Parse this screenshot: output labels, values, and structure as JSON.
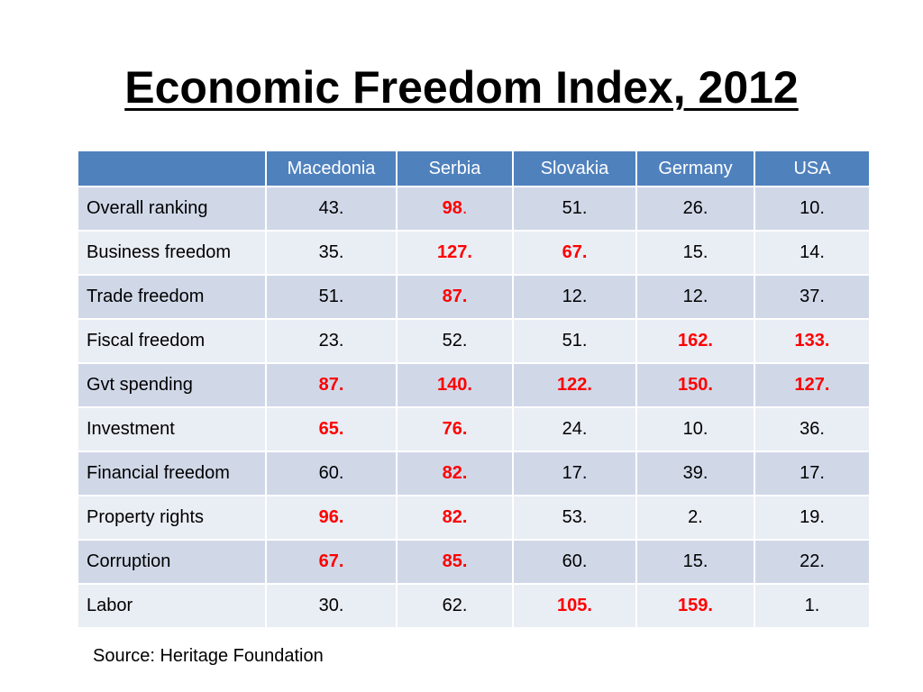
{
  "title": "Economic Freedom Index, 2012",
  "table": {
    "headers": [
      "",
      "Macedonia",
      "Serbia",
      "Slovakia",
      "Germany",
      "USA"
    ],
    "rows": [
      {
        "label": "Overall ranking",
        "cells": [
          {
            "v": "43."
          },
          {
            "v": "98",
            "suffix": ".",
            "hl": true
          },
          {
            "v": "51."
          },
          {
            "v": "26."
          },
          {
            "v": "10."
          }
        ]
      },
      {
        "label": "Business freedom",
        "cells": [
          {
            "v": "35."
          },
          {
            "v": "127.",
            "hl": true
          },
          {
            "v": "67.",
            "hl": true
          },
          {
            "v": "15."
          },
          {
            "v": "14."
          }
        ]
      },
      {
        "label": "Trade freedom",
        "cells": [
          {
            "v": "51."
          },
          {
            "v": "87.",
            "hl": true
          },
          {
            "v": "12."
          },
          {
            "v": "12."
          },
          {
            "v": "37."
          }
        ]
      },
      {
        "label": "Fiscal freedom",
        "cells": [
          {
            "v": "23."
          },
          {
            "v": "52."
          },
          {
            "v": "51."
          },
          {
            "v": "162.",
            "hl": true
          },
          {
            "v": "133.",
            "hl": true
          }
        ]
      },
      {
        "label": "Gvt spending",
        "cells": [
          {
            "v": "87.",
            "hl": true
          },
          {
            "v": "140.",
            "hl": true
          },
          {
            "v": "122.",
            "hl": true
          },
          {
            "v": "150.",
            "hl": true
          },
          {
            "v": "127.",
            "hl": true
          }
        ]
      },
      {
        "label": "Investment",
        "cells": [
          {
            "v": "65.",
            "hl": true
          },
          {
            "v": "76.",
            "hl": true
          },
          {
            "v": "24."
          },
          {
            "v": "10."
          },
          {
            "v": "36."
          }
        ]
      },
      {
        "label": "Financial freedom",
        "cells": [
          {
            "v": "60."
          },
          {
            "v": "82.",
            "hl": true
          },
          {
            "v": "17."
          },
          {
            "v": "39."
          },
          {
            "v": "17."
          }
        ]
      },
      {
        "label": "Property rights",
        "cells": [
          {
            "v": "96.",
            "hl": true
          },
          {
            "v": "82.",
            "hl": true
          },
          {
            "v": "53."
          },
          {
            "v": "2."
          },
          {
            "v": "19."
          }
        ]
      },
      {
        "label": "Corruption",
        "cells": [
          {
            "v": "67.",
            "hl": true
          },
          {
            "v": "85.",
            "hl": true
          },
          {
            "v": "60."
          },
          {
            "v": "15."
          },
          {
            "v": "22."
          }
        ]
      },
      {
        "label": "Labor",
        "cells": [
          {
            "v": "30."
          },
          {
            "v": "62."
          },
          {
            "v": "105.",
            "hl": true
          },
          {
            "v": "159.",
            "hl": true
          },
          {
            "v": "1."
          }
        ]
      }
    ]
  },
  "colors": {
    "header_bg": "#4f81bd",
    "row_odd": "#d0d8e8",
    "row_even": "#e9edf4",
    "highlight": "#ff0000"
  },
  "source": "Source: Heritage Foundation"
}
